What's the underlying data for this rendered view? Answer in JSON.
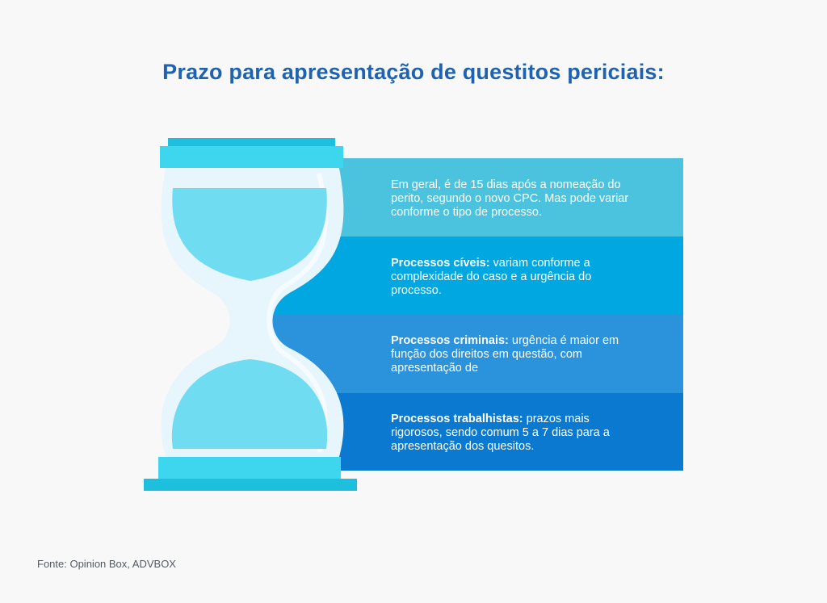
{
  "title": "Prazo para apresentação de questitos periciais:",
  "colors": {
    "title": "#1f63b0",
    "band1": "#4bc3df",
    "band2": "#00a7e0",
    "band3": "#2b93dc",
    "band4": "#0a79cf",
    "sand": "#6fdcf1",
    "glass": "#e6f6fc",
    "cap": "#3dd6ee"
  },
  "bands": [
    {
      "bold": "",
      "text": "Em geral, é de 15 dias após a nomeação do perito, segundo o novo CPC. Mas pode variar conforme o tipo de processo."
    },
    {
      "bold": "Processos cíveis:",
      "text": " variam conforme a complexidade do caso e a urgência do processo."
    },
    {
      "bold": "Processos criminais:",
      "text": " urgência é maior em função dos direitos em questão, com apresentação de"
    },
    {
      "bold": "Processos trabalhistas:",
      "text": " prazos mais rigorosos, sendo comum 5 a 7 dias para a apresentação dos quesitos."
    }
  ],
  "source": "Fonte: Opinion Box, ADVBOX",
  "icon": "hourglass-icon"
}
